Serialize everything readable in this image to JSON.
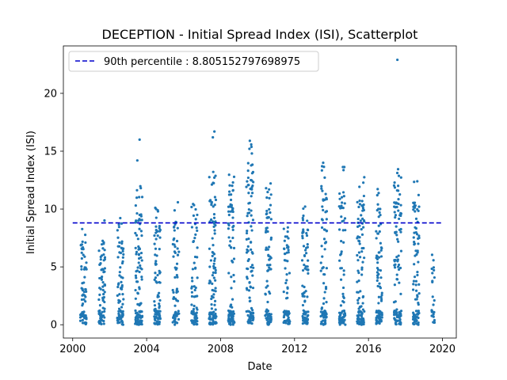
{
  "chart_data": {
    "type": "scatter",
    "title": "DECEPTION - Initial Spread Index (ISI), Scatterplot",
    "xlabel": "Date",
    "ylabel": "Initial Spread Index (ISI)",
    "xlim": [
      "1999-07-01",
      "2020-10-01"
    ],
    "ylim": [
      -1.15,
      24.1
    ],
    "x_ticks": [
      "2000",
      "2004",
      "2008",
      "2012",
      "2016",
      "2020"
    ],
    "y_ticks": [
      0,
      5,
      10,
      15,
      20
    ],
    "grid": false,
    "legend": {
      "placement": "top-left",
      "entries": [
        {
          "label": "90th percentile : 8.805152797698975",
          "color": "#0000cc",
          "style": "dashed"
        }
      ]
    },
    "reference_line": {
      "value": 8.805152797698975,
      "x_start": "2000-01-01",
      "x_end": "2019-12-31",
      "color": "#0000cc"
    },
    "point_color": "#1f77b4",
    "seasons": [
      {
        "start": "2000-06-01",
        "end": "2000-09-30",
        "max": 8.9,
        "n": 75
      },
      {
        "start": "2001-06-01",
        "end": "2001-09-30",
        "max": 9.1,
        "n": 80
      },
      {
        "start": "2002-06-01",
        "end": "2002-09-30",
        "max": 9.3,
        "n": 85
      },
      {
        "start": "2003-05-20",
        "end": "2003-10-10",
        "max": 12.3,
        "n": 110
      },
      {
        "start": "2004-06-01",
        "end": "2004-10-01",
        "max": 10.5,
        "n": 90
      },
      {
        "start": "2005-06-01",
        "end": "2005-09-30",
        "max": 10.6,
        "n": 70
      },
      {
        "start": "2006-06-01",
        "end": "2006-09-30",
        "max": 10.9,
        "n": 75
      },
      {
        "start": "2007-05-20",
        "end": "2007-10-10",
        "max": 13.5,
        "n": 110
      },
      {
        "start": "2008-06-01",
        "end": "2008-09-30",
        "max": 13.0,
        "n": 90
      },
      {
        "start": "2009-05-20",
        "end": "2009-10-10",
        "max": 15.7,
        "n": 110
      },
      {
        "start": "2010-06-01",
        "end": "2010-09-30",
        "max": 12.3,
        "n": 90
      },
      {
        "start": "2011-06-01",
        "end": "2011-09-30",
        "max": 8.6,
        "n": 75
      },
      {
        "start": "2012-06-01",
        "end": "2012-09-30",
        "max": 10.3,
        "n": 85
      },
      {
        "start": "2013-06-01",
        "end": "2013-09-30",
        "max": 14.1,
        "n": 85
      },
      {
        "start": "2014-06-01",
        "end": "2014-09-30",
        "max": 13.9,
        "n": 85
      },
      {
        "start": "2015-05-20",
        "end": "2015-10-10",
        "max": 13.4,
        "n": 110
      },
      {
        "start": "2016-06-01",
        "end": "2016-09-30",
        "max": 12.1,
        "n": 95
      },
      {
        "start": "2017-05-20",
        "end": "2017-10-10",
        "max": 13.7,
        "n": 110
      },
      {
        "start": "2018-06-01",
        "end": "2018-09-30",
        "max": 13.2,
        "n": 95
      },
      {
        "start": "2019-06-01",
        "end": "2019-07-31",
        "max": 6.7,
        "n": 25
      }
    ],
    "outliers": [
      {
        "x": "2003-08-15",
        "y": 16.0
      },
      {
        "x": "2003-07-01",
        "y": 14.2
      },
      {
        "x": "2007-08-01",
        "y": 16.2
      },
      {
        "x": "2007-09-01",
        "y": 16.7
      },
      {
        "x": "2009-08-01",
        "y": 15.9
      },
      {
        "x": "2009-09-10",
        "y": 14.8
      },
      {
        "x": "2013-07-20",
        "y": 14.0
      },
      {
        "x": "2017-07-25",
        "y": 22.9
      }
    ]
  }
}
